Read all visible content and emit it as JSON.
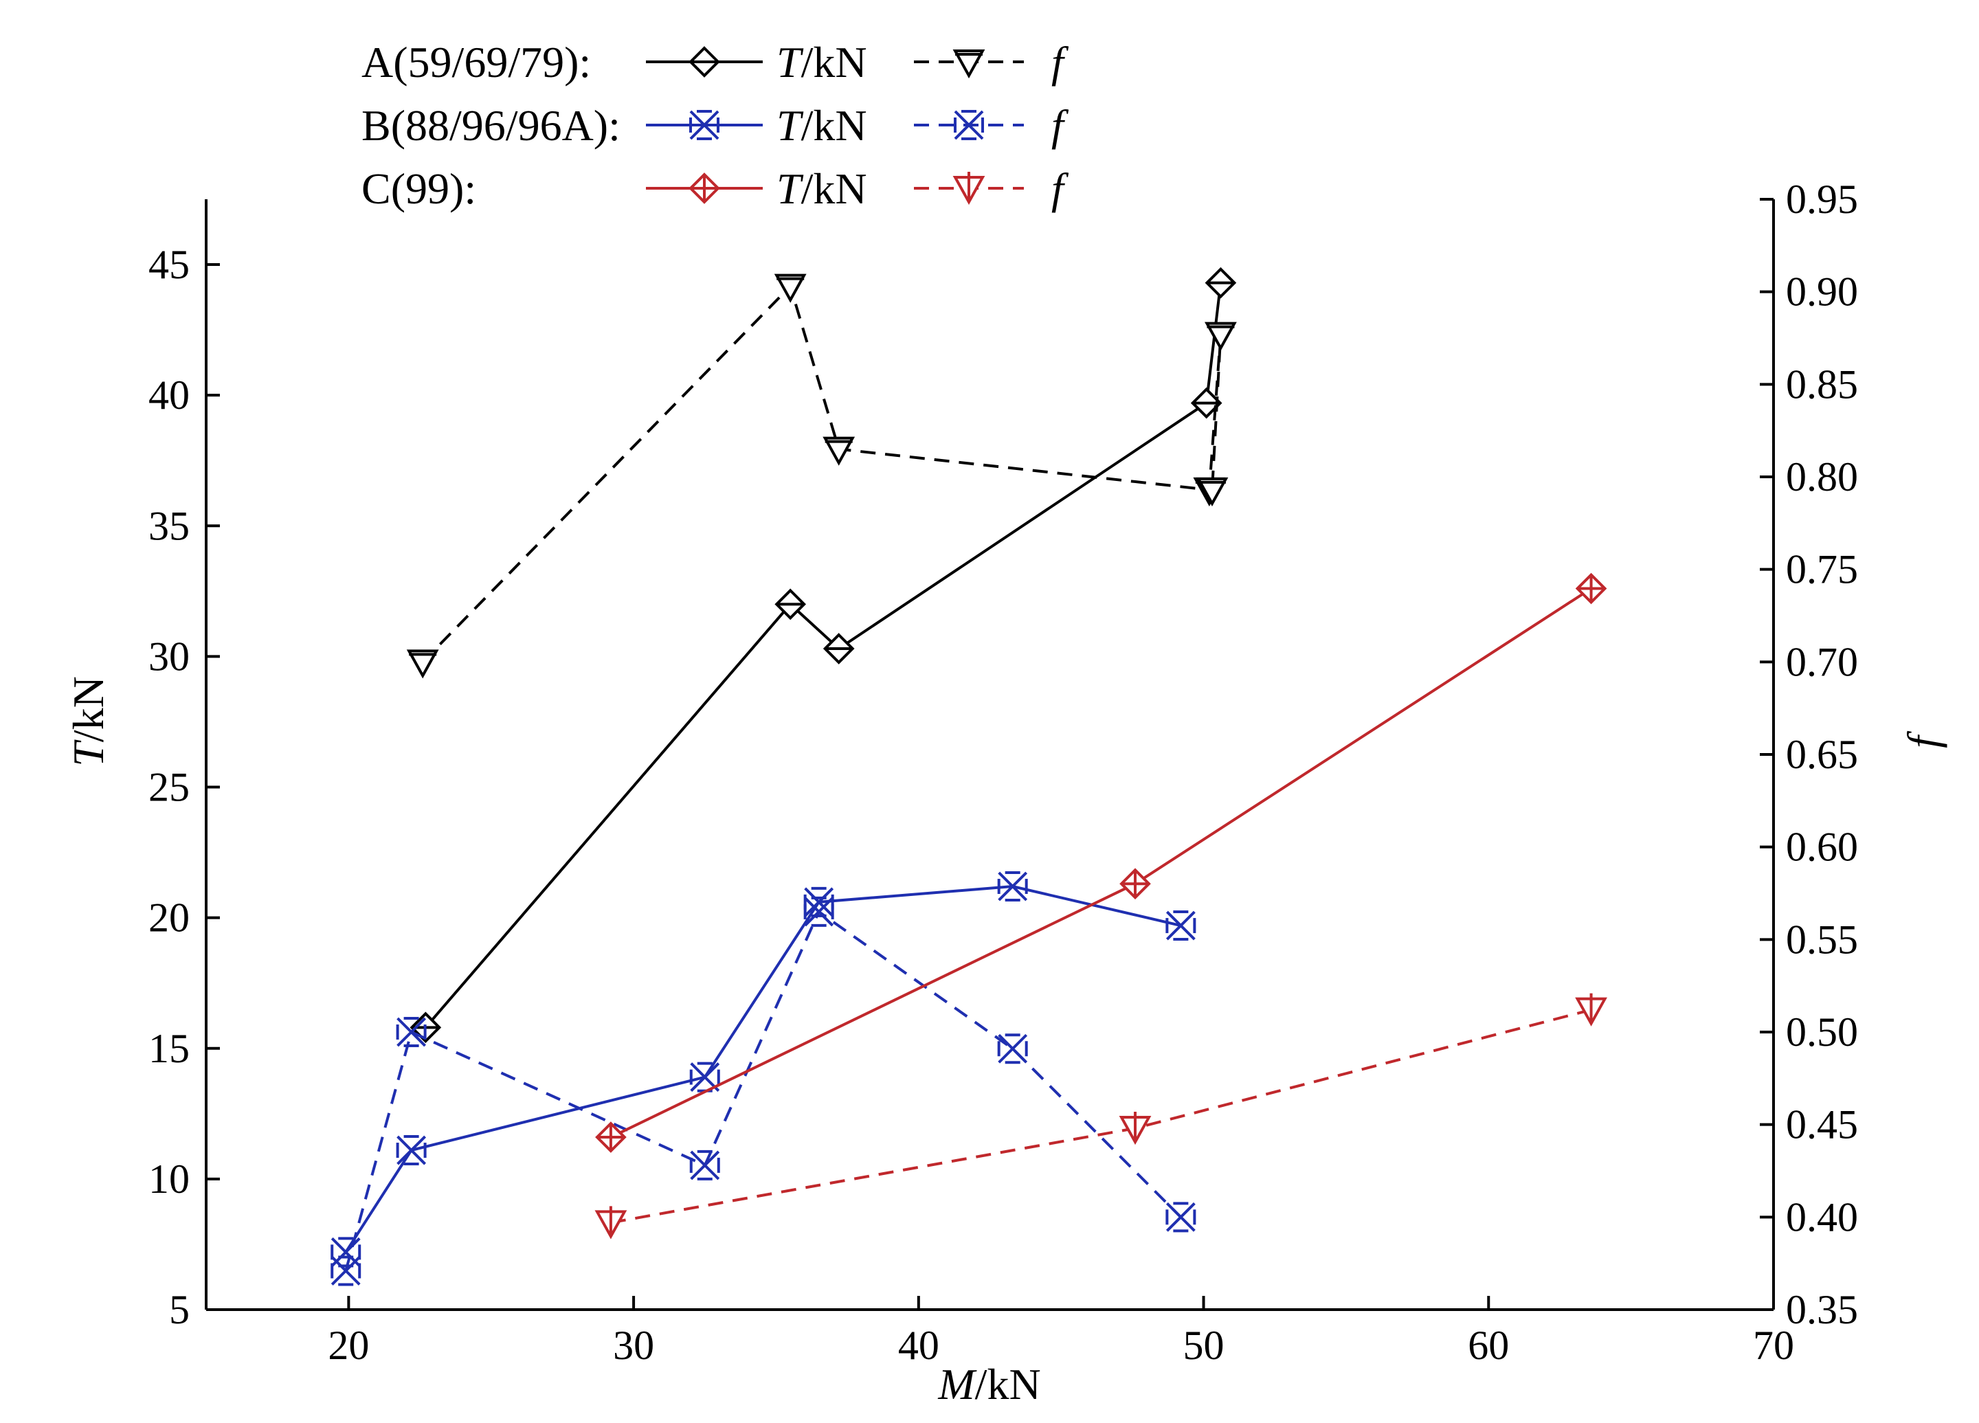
{
  "chart_data": {
    "type": "line",
    "xlabel": {
      "italic": "M",
      "rest": "/kN"
    },
    "ylabel_left": {
      "italic": "T",
      "rest": "/kN"
    },
    "ylabel_right": {
      "italic": "f",
      "rest": ""
    },
    "xlim": [
      15,
      70
    ],
    "ylim_left": [
      5,
      47.5
    ],
    "ylim_right": [
      0.35,
      0.95
    ],
    "x_ticks": [
      20,
      30,
      40,
      50,
      60,
      70
    ],
    "x_tick_labels": [
      "20",
      "30",
      "40",
      "50",
      "60",
      "70"
    ],
    "y_left_ticks": [
      5,
      10,
      15,
      20,
      25,
      30,
      35,
      40,
      45
    ],
    "y_left_tick_labels": [
      "5",
      "10",
      "15",
      "20",
      "25",
      "30",
      "35",
      "40",
      "45"
    ],
    "y_right_ticks": [
      0.35,
      0.4,
      0.45,
      0.5,
      0.55,
      0.6,
      0.65,
      0.7,
      0.75,
      0.8,
      0.85,
      0.9,
      0.95
    ],
    "y_right_tick_labels": [
      "0.35",
      "0.40",
      "0.45",
      "0.50",
      "0.55",
      "0.60",
      "0.65",
      "0.70",
      "0.75",
      "0.80",
      "0.85",
      "0.90",
      "0.95"
    ],
    "grid": false,
    "legend_position": "top-left",
    "legend_rows": [
      {
        "group": "A(59/69/79):",
        "t_label": {
          "italic": "T",
          "rest": "/kN"
        },
        "f_label": "f",
        "color": "#000000",
        "t_marker": "diamond",
        "f_marker": "triangle-down"
      },
      {
        "group": "B(88/96/96A):",
        "t_label": {
          "italic": "T",
          "rest": "/kN"
        },
        "f_label": "f",
        "color": "#1f2fb0",
        "t_marker": "crossed-x",
        "f_marker": "crossed-x"
      },
      {
        "group": "C(99):",
        "t_label": {
          "italic": "T",
          "rest": "/kN"
        },
        "f_label": "f",
        "color": "#c0282c",
        "t_marker": "crossed-diamond",
        "f_marker": "triangle-plus"
      }
    ],
    "series": [
      {
        "group": "A",
        "quantity": "T",
        "axis": "left",
        "color": "#000000",
        "dash": "solid",
        "marker": "diamond",
        "x": [
          22.7,
          35.5,
          37.2,
          50.1,
          50.6
        ],
        "y": [
          15.8,
          32.0,
          30.3,
          39.7,
          44.3
        ]
      },
      {
        "group": "A",
        "quantity": "f",
        "axis": "right",
        "color": "#000000",
        "dash": "dashed",
        "marker": "triangle-down",
        "x": [
          22.6,
          35.5,
          37.2,
          50.2,
          50.6,
          50.3
        ],
        "y": [
          0.7,
          0.903,
          0.815,
          0.793,
          0.877,
          0.793
        ]
      },
      {
        "group": "B",
        "quantity": "T",
        "axis": "left",
        "color": "#1f2fb0",
        "dash": "solid",
        "marker": "crossed-x",
        "x": [
          19.9,
          22.2,
          32.5,
          36.5,
          43.3,
          49.2
        ],
        "y": [
          7.2,
          11.1,
          13.9,
          20.6,
          21.2,
          19.7
        ]
      },
      {
        "group": "B",
        "quantity": "f",
        "axis": "right",
        "color": "#1f2fb0",
        "dash": "dashed",
        "marker": "crossed-x",
        "x": [
          19.9,
          22.2,
          32.5,
          36.5,
          43.3,
          49.2
        ],
        "y": [
          0.371,
          0.5,
          0.428,
          0.565,
          0.491,
          0.4
        ]
      },
      {
        "group": "C",
        "quantity": "T",
        "axis": "left",
        "color": "#c0282c",
        "dash": "solid",
        "marker": "crossed-diamond",
        "x": [
          29.2,
          47.6,
          63.6
        ],
        "y": [
          11.6,
          21.3,
          32.6
        ]
      },
      {
        "group": "C",
        "quantity": "f",
        "axis": "right",
        "color": "#c0282c",
        "dash": "dashed",
        "marker": "triangle-plus",
        "x": [
          29.2,
          47.6,
          63.6
        ],
        "y": [
          0.397,
          0.448,
          0.512
        ]
      }
    ]
  }
}
